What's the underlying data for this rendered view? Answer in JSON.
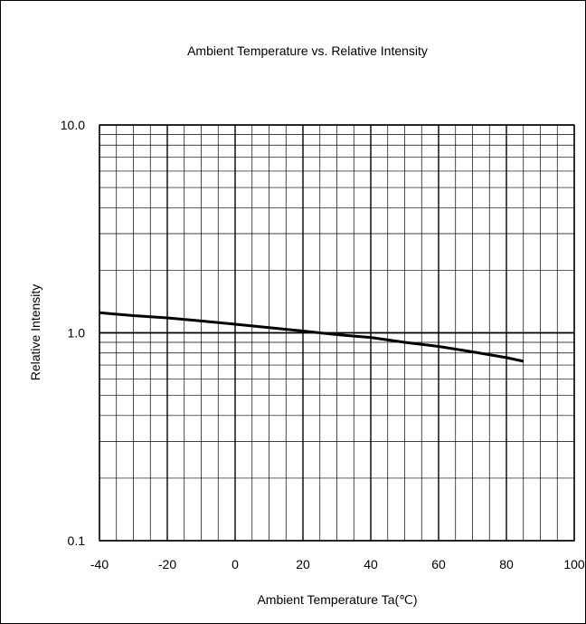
{
  "chart_data": {
    "type": "line",
    "title": "Ambient Temperature vs. Relative Intensity",
    "xlabel": "Ambient Temperature Ta(℃)",
    "ylabel": "Relative Intensity",
    "xlim": [
      -40,
      100
    ],
    "ylim": [
      0.1,
      10.0
    ],
    "yscale": "log",
    "grid": true,
    "x_ticks": [
      "-40",
      "-20",
      "0",
      "20",
      "40",
      "60",
      "80",
      "100"
    ],
    "y_ticks": [
      "0.1",
      "1.0",
      "10.0"
    ],
    "series": [
      {
        "x": [
          -40,
          -30,
          -20,
          -10,
          0,
          10,
          20,
          30,
          40,
          50,
          60,
          70,
          80,
          85
        ],
        "values": [
          1.25,
          1.21,
          1.18,
          1.14,
          1.1,
          1.06,
          1.02,
          0.98,
          0.95,
          0.9,
          0.86,
          0.81,
          0.76,
          0.73
        ]
      }
    ],
    "line_color": "#000000"
  }
}
